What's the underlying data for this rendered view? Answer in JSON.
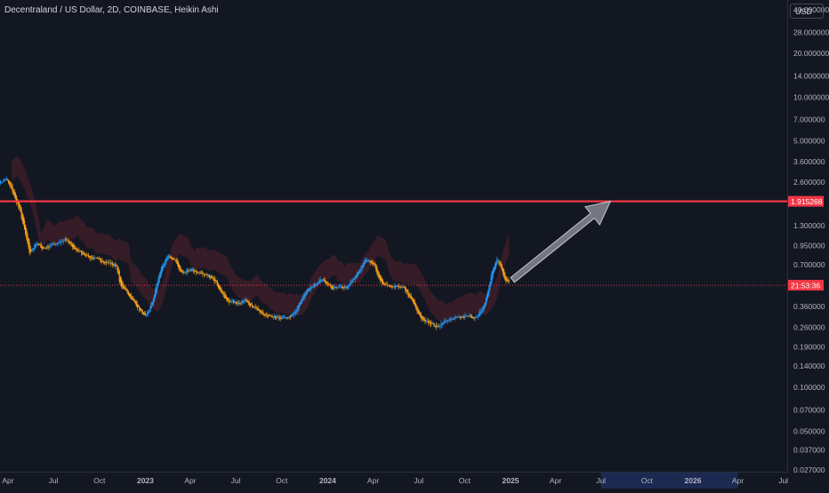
{
  "header": {
    "title": "Decentraland / US Dollar, 2D, COINBASE, Heikin Ashi",
    "currency": "USD"
  },
  "chart_data": {
    "type": "candlestick",
    "scale": "log",
    "ylim": [
      0.027,
      40
    ],
    "y_ticks": [
      {
        "label": "40.000000",
        "value": 40
      },
      {
        "label": "28.000000",
        "value": 28
      },
      {
        "label": "20.000000",
        "value": 20
      },
      {
        "label": "14.000000",
        "value": 14
      },
      {
        "label": "10.000000",
        "value": 10
      },
      {
        "label": "7.000000",
        "value": 7
      },
      {
        "label": "5.000000",
        "value": 5
      },
      {
        "label": "3.600000",
        "value": 3.6
      },
      {
        "label": "2.600000",
        "value": 2.6
      },
      {
        "label": "1.300000",
        "value": 1.3
      },
      {
        "label": "0.950000",
        "value": 0.95
      },
      {
        "label": "0.700000",
        "value": 0.7
      },
      {
        "label": "0.360000",
        "value": 0.36
      },
      {
        "label": "0.260000",
        "value": 0.26
      },
      {
        "label": "0.190000",
        "value": 0.19
      },
      {
        "label": "0.140000",
        "value": 0.14
      },
      {
        "label": "0.100000",
        "value": 0.1
      },
      {
        "label": "0.070000",
        "value": 0.07
      },
      {
        "label": "0.050000",
        "value": 0.05
      },
      {
        "label": "0.037000",
        "value": 0.037
      },
      {
        "label": "0.027000",
        "value": 0.027
      }
    ],
    "x_ticks": [
      {
        "label": "Apr",
        "date": "2022-04-01",
        "bold": false
      },
      {
        "label": "Jul",
        "date": "2022-07-01",
        "bold": false
      },
      {
        "label": "Oct",
        "date": "2022-10-01",
        "bold": false
      },
      {
        "label": "2023",
        "date": "2023-01-01",
        "bold": true
      },
      {
        "label": "Apr",
        "date": "2023-04-01",
        "bold": false
      },
      {
        "label": "Jul",
        "date": "2023-07-01",
        "bold": false
      },
      {
        "label": "Oct",
        "date": "2023-10-01",
        "bold": false
      },
      {
        "label": "2024",
        "date": "2024-01-01",
        "bold": true
      },
      {
        "label": "Apr",
        "date": "2024-04-01",
        "bold": false
      },
      {
        "label": "Jul",
        "date": "2024-07-01",
        "bold": false
      },
      {
        "label": "Oct",
        "date": "2024-10-01",
        "bold": false
      },
      {
        "label": "2025",
        "date": "2025-01-01",
        "bold": true
      },
      {
        "label": "Apr",
        "date": "2025-04-01",
        "bold": false
      },
      {
        "label": "Jul",
        "date": "2025-07-01",
        "bold": false
      },
      {
        "label": "Oct",
        "date": "2025-10-01",
        "bold": false
      },
      {
        "label": "2026",
        "date": "2026-01-01",
        "bold": true
      },
      {
        "label": "Apr",
        "date": "2026-04-01",
        "bold": false
      },
      {
        "label": "Jul",
        "date": "2026-07-01",
        "bold": false
      }
    ],
    "highlight_range": {
      "start": "2025-07-01",
      "end": "2026-04-01"
    },
    "price_path": [
      [
        "2022-03-15",
        2.6
      ],
      [
        "2022-03-28",
        2.75
      ],
      [
        "2022-04-10",
        2.2
      ],
      [
        "2022-04-25",
        1.6
      ],
      [
        "2022-05-08",
        1.0
      ],
      [
        "2022-05-14",
        0.8
      ],
      [
        "2022-05-25",
        1.0
      ],
      [
        "2022-06-10",
        0.9
      ],
      [
        "2022-06-22",
        0.95
      ],
      [
        "2022-07-10",
        1.0
      ],
      [
        "2022-07-25",
        1.05
      ],
      [
        "2022-08-10",
        0.9
      ],
      [
        "2022-08-25",
        0.85
      ],
      [
        "2022-09-15",
        0.78
      ],
      [
        "2022-10-01",
        0.75
      ],
      [
        "2022-10-20",
        0.72
      ],
      [
        "2022-11-05",
        0.68
      ],
      [
        "2022-11-10",
        0.5
      ],
      [
        "2022-11-25",
        0.45
      ],
      [
        "2022-12-20",
        0.34
      ],
      [
        "2023-01-01",
        0.3
      ],
      [
        "2023-01-15",
        0.4
      ],
      [
        "2023-02-01",
        0.68
      ],
      [
        "2023-02-15",
        0.8
      ],
      [
        "2023-03-01",
        0.75
      ],
      [
        "2023-03-15",
        0.6
      ],
      [
        "2023-04-01",
        0.66
      ],
      [
        "2023-04-20",
        0.6
      ],
      [
        "2023-05-15",
        0.58
      ],
      [
        "2023-06-10",
        0.4
      ],
      [
        "2023-07-01",
        0.38
      ],
      [
        "2023-07-20",
        0.4
      ],
      [
        "2023-08-20",
        0.32
      ],
      [
        "2023-09-15",
        0.3
      ],
      [
        "2023-10-10",
        0.3
      ],
      [
        "2023-10-25",
        0.32
      ],
      [
        "2023-11-15",
        0.45
      ],
      [
        "2023-12-01",
        0.5
      ],
      [
        "2023-12-20",
        0.56
      ],
      [
        "2024-01-10",
        0.48
      ],
      [
        "2024-02-10",
        0.5
      ],
      [
        "2024-03-01",
        0.62
      ],
      [
        "2024-03-15",
        0.75
      ],
      [
        "2024-04-01",
        0.72
      ],
      [
        "2024-04-15",
        0.52
      ],
      [
        "2024-05-10",
        0.5
      ],
      [
        "2024-06-01",
        0.48
      ],
      [
        "2024-06-20",
        0.38
      ],
      [
        "2024-07-05",
        0.3
      ],
      [
        "2024-07-20",
        0.28
      ],
      [
        "2024-08-05",
        0.26
      ],
      [
        "2024-08-25",
        0.29
      ],
      [
        "2024-09-15",
        0.3
      ],
      [
        "2024-10-10",
        0.31
      ],
      [
        "2024-10-25",
        0.3
      ],
      [
        "2024-11-10",
        0.38
      ],
      [
        "2024-11-25",
        0.65
      ],
      [
        "2024-12-05",
        0.78
      ],
      [
        "2024-12-20",
        0.55
      ],
      [
        "2024-12-30",
        0.52
      ]
    ],
    "horizontal_levels": [
      {
        "price": 1.915268,
        "label": "1.915268",
        "color": "#f23645",
        "style": "solid"
      },
      {
        "price": 0.506,
        "label": "21:53:36",
        "color": "#f23645",
        "style": "dotted"
      }
    ],
    "arrow": {
      "from": [
        "2025-01-05",
        0.55
      ],
      "to": [
        "2025-07-20",
        1.915268
      ]
    },
    "up_color": "#2196f3",
    "down_color": "#f7a21b",
    "cloud_color": "#f23645"
  }
}
